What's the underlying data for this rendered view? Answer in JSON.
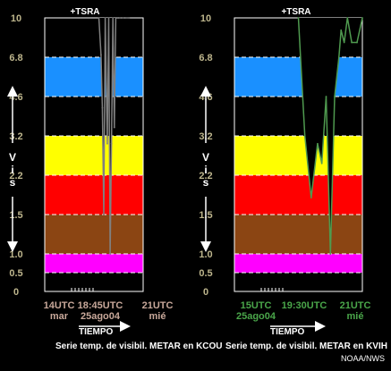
{
  "colors": {
    "background": "#000000",
    "band_blue": "#1a90ff",
    "band_yellow": "#ffff00",
    "band_red": "#ff0000",
    "band_brown": "#8b4513",
    "band_magenta": "#ff00ff",
    "tick_label": "#bdb58c",
    "time_label_left": "#c8a89a",
    "time_label_right": "#4aa64a",
    "caption": "#ffffff",
    "trace_left": "#808080",
    "trace_right": "#4f9a4f"
  },
  "ui": {
    "vis_label": "Vis",
    "tiempo_label": "TIEMPO",
    "credit": "NOAA/NWS"
  },
  "chart_data": [
    {
      "type": "line",
      "title": "Serie temp. de visibil. METAR en KCOU",
      "ylabel": "Vis",
      "xlabel": "TIEMPO",
      "y_ticks": [
        "0",
        "0.5",
        "1.0",
        "1.5",
        "2.2",
        "3.2",
        "4.6",
        "6.8",
        "10"
      ],
      "y_scale": "categorical-tick-spacing",
      "x_labels": [
        {
          "line1": "14UTC",
          "line2": "mar"
        },
        {
          "line1": "18:45UTC",
          "line2": "25ago04"
        },
        {
          "line1": "21UTC",
          "line2": "mié"
        }
      ],
      "annotation": "+TSRA",
      "bands": [
        {
          "from": "0.5",
          "to": "1.0",
          "color": "band_magenta"
        },
        {
          "from": "1.0",
          "to": "1.5",
          "color": "band_brown"
        },
        {
          "from": "1.5",
          "to": "2.2",
          "color": "band_red"
        },
        {
          "from": "2.2",
          "to": "3.2",
          "color": "band_yellow"
        },
        {
          "from": "4.6",
          "to": "6.8",
          "color": "band_blue"
        }
      ],
      "series": [
        {
          "x_hours": [
            17.85,
            18.0,
            18.1,
            18.2,
            18.3,
            18.45,
            18.55,
            18.65,
            18.75,
            18.85,
            18.95,
            19.05,
            19.15,
            19.25,
            19.45,
            19.7,
            20.0
          ],
          "vis_mi": [
            10,
            7,
            4.2,
            1.5,
            10,
            3.0,
            10,
            1.0,
            3.0,
            10,
            3.5,
            10,
            10,
            10,
            10,
            10,
            10
          ]
        }
      ],
      "x_range_hours": [
        14,
        21
      ]
    },
    {
      "type": "line",
      "title": "Serie temp. de visibil. METAR en KVIH",
      "ylabel": "Vis",
      "xlabel": "TIEMPO",
      "y_ticks": [
        "0",
        "0.5",
        "1.0",
        "1.5",
        "2.2",
        "3.2",
        "4.6",
        "6.8",
        "10"
      ],
      "y_scale": "categorical-tick-spacing",
      "x_labels": [
        {
          "line1": "15UTC",
          "line2": "25ago04"
        },
        {
          "line1": "19:30UTC",
          "line2": ""
        },
        {
          "line1": "21UTC",
          "line2": "mié"
        }
      ],
      "annotation": "+TSRA",
      "bands": [
        {
          "from": "0.5",
          "to": "1.0",
          "color": "band_magenta"
        },
        {
          "from": "1.0",
          "to": "1.5",
          "color": "band_brown"
        },
        {
          "from": "1.5",
          "to": "2.2",
          "color": "band_red"
        },
        {
          "from": "2.2",
          "to": "3.2",
          "color": "band_yellow"
        },
        {
          "from": "4.6",
          "to": "6.8",
          "color": "band_blue"
        }
      ],
      "series": [
        {
          "x_hours": [
            18.0,
            18.3,
            18.6,
            18.9,
            19.1,
            19.3,
            19.5,
            19.7,
            19.9,
            20.0,
            20.15,
            20.3,
            20.5,
            20.75,
            21.0
          ],
          "vis_mi": [
            10,
            3.2,
            1.8,
            3.0,
            2.5,
            4.6,
            1.0,
            4.6,
            6.8,
            9.0,
            8.0,
            10,
            8.0,
            8.0,
            10
          ]
        }
      ],
      "x_range_hours": [
        15,
        21
      ]
    }
  ]
}
